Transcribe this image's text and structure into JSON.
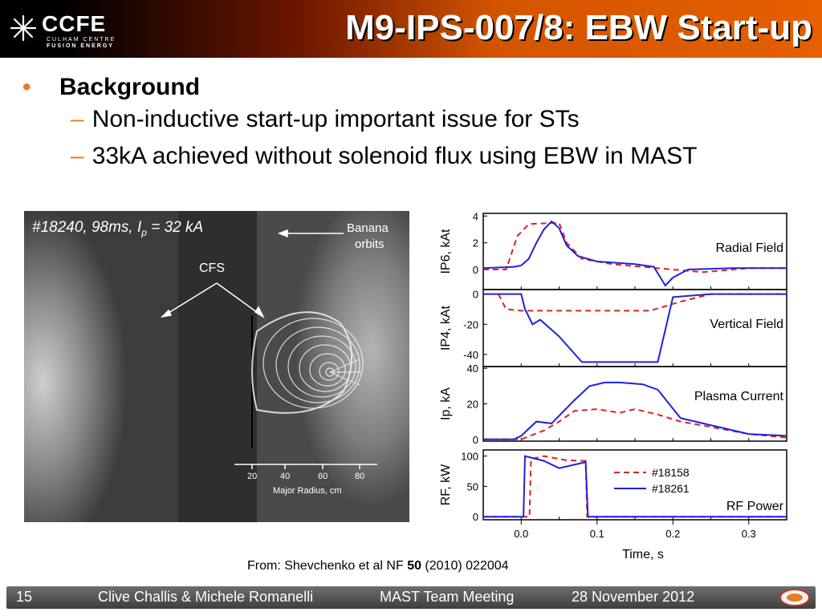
{
  "header": {
    "logo_name": "CCFE",
    "logo_line1": "CULHAM CENTRE",
    "logo_line2": "FUSION ENERGY",
    "title": "M9-IPS-007/8: EBW Start-up"
  },
  "bullets": {
    "heading": "Background",
    "items": [
      "Non-inductive start-up important issue for STs",
      "33kA achieved without solenoid flux using EBW in MAST"
    ]
  },
  "photo": {
    "label": "#18240, 98ms, I",
    "label_sub": "p",
    "label_rest": " = 32 kA",
    "banana": [
      "Banana",
      "orbits"
    ],
    "cfs": "CFS",
    "axis_ticks": [
      "20",
      "40",
      "60",
      "80"
    ],
    "axis_label": "Major Radius, cm"
  },
  "chart_data": [
    {
      "type": "line",
      "panel": "Radial Field",
      "ylabel": "I_P6, kAt",
      "yticks": [
        0,
        2,
        4
      ],
      "ylim": [
        -1.5,
        4.2
      ],
      "xlim": [
        -0.05,
        0.35
      ],
      "series": [
        {
          "name": "#18158",
          "color": "#e02020",
          "dash": true,
          "points": [
            [
              -0.05,
              0
            ],
            [
              -0.02,
              0
            ],
            [
              -0.005,
              2.5
            ],
            [
              0.01,
              3.4
            ],
            [
              0.05,
              3.5
            ],
            [
              0.06,
              2.0
            ],
            [
              0.08,
              0.8
            ],
            [
              0.12,
              0.4
            ],
            [
              0.16,
              0.2
            ],
            [
              0.19,
              0.05
            ],
            [
              0.24,
              -0.2
            ],
            [
              0.3,
              0.1
            ],
            [
              0.35,
              0.1
            ]
          ]
        },
        {
          "name": "#18261",
          "color": "#2020e0",
          "points": [
            [
              -0.05,
              0.1
            ],
            [
              -0.01,
              0.2
            ],
            [
              0.0,
              0.3
            ],
            [
              0.01,
              0.8
            ],
            [
              0.02,
              2.0
            ],
            [
              0.03,
              3.0
            ],
            [
              0.04,
              3.6
            ],
            [
              0.05,
              3.1
            ],
            [
              0.06,
              1.8
            ],
            [
              0.075,
              1.0
            ],
            [
              0.1,
              0.6
            ],
            [
              0.15,
              0.4
            ],
            [
              0.175,
              0.2
            ],
            [
              0.19,
              -1.2
            ],
            [
              0.2,
              -0.6
            ],
            [
              0.22,
              0.0
            ],
            [
              0.28,
              0.1
            ],
            [
              0.35,
              0.1
            ]
          ]
        }
      ]
    },
    {
      "type": "line",
      "panel": "Vertical Field",
      "ylabel": "I_P4, kAt",
      "yticks": [
        0,
        -20,
        -40
      ],
      "ylim": [
        -48,
        3
      ],
      "xlim": [
        -0.05,
        0.35
      ],
      "series": [
        {
          "name": "#18158",
          "color": "#e02020",
          "dash": true,
          "points": [
            [
              -0.03,
              0
            ],
            [
              -0.02,
              -10
            ],
            [
              0.0,
              -11
            ],
            [
              0.05,
              -11
            ],
            [
              0.1,
              -11
            ],
            [
              0.17,
              -11
            ],
            [
              0.21,
              -5
            ],
            [
              0.25,
              0
            ],
            [
              0.35,
              0
            ]
          ]
        },
        {
          "name": "#18261",
          "color": "#2020e0",
          "points": [
            [
              -0.05,
              0
            ],
            [
              0.0,
              0
            ],
            [
              0.005,
              -10
            ],
            [
              0.015,
              -20
            ],
            [
              0.025,
              -17
            ],
            [
              0.05,
              -28
            ],
            [
              0.08,
              -45
            ],
            [
              0.1,
              -45
            ],
            [
              0.15,
              -45
            ],
            [
              0.18,
              -45
            ],
            [
              0.2,
              -2
            ],
            [
              0.25,
              0
            ],
            [
              0.35,
              0
            ]
          ]
        }
      ]
    },
    {
      "type": "line",
      "panel": "Plasma Current",
      "ylabel": "I_p, kA",
      "yticks": [
        0,
        20,
        40
      ],
      "ylim": [
        -1,
        41
      ],
      "xlim": [
        -0.05,
        0.35
      ],
      "series": [
        {
          "name": "#18158",
          "color": "#e02020",
          "dash": true,
          "points": [
            [
              -0.05,
              0
            ],
            [
              0.0,
              0
            ],
            [
              0.03,
              5
            ],
            [
              0.05,
              10
            ],
            [
              0.07,
              16
            ],
            [
              0.1,
              17
            ],
            [
              0.13,
              15
            ],
            [
              0.15,
              17
            ],
            [
              0.18,
              14
            ],
            [
              0.21,
              10
            ],
            [
              0.25,
              7
            ],
            [
              0.3,
              3
            ],
            [
              0.35,
              1
            ]
          ]
        },
        {
          "name": "#18261",
          "color": "#2020e0",
          "points": [
            [
              -0.05,
              0
            ],
            [
              -0.01,
              0
            ],
            [
              0.0,
              2
            ],
            [
              0.02,
              10
            ],
            [
              0.04,
              9
            ],
            [
              0.07,
              22
            ],
            [
              0.09,
              30
            ],
            [
              0.11,
              32
            ],
            [
              0.13,
              32
            ],
            [
              0.16,
              31
            ],
            [
              0.18,
              28
            ],
            [
              0.21,
              12
            ],
            [
              0.25,
              8
            ],
            [
              0.3,
              3
            ],
            [
              0.35,
              2
            ]
          ]
        }
      ]
    },
    {
      "type": "line",
      "panel": "RF Power",
      "ylabel": "RF, kW",
      "xlabel": "Time, s",
      "yticks": [
        0,
        50,
        100
      ],
      "xticks": [
        0.0,
        0.1,
        0.2,
        0.3
      ],
      "ylim": [
        -5,
        110
      ],
      "xlim": [
        -0.05,
        0.35
      ],
      "legend": "right",
      "series": [
        {
          "name": "#18158",
          "color": "#e02020",
          "dash": true,
          "points": [
            [
              -0.05,
              0
            ],
            [
              0.011,
              0
            ],
            [
              0.013,
              95
            ],
            [
              0.03,
              100
            ],
            [
              0.06,
              93
            ],
            [
              0.085,
              92
            ],
            [
              0.087,
              0
            ],
            [
              0.35,
              0
            ]
          ]
        },
        {
          "name": "#18261",
          "color": "#2020e0",
          "points": [
            [
              -0.05,
              0
            ],
            [
              0.003,
              0
            ],
            [
              0.005,
              100
            ],
            [
              0.03,
              92
            ],
            [
              0.05,
              80
            ],
            [
              0.085,
              90
            ],
            [
              0.088,
              0
            ],
            [
              0.35,
              0
            ]
          ]
        }
      ]
    }
  ],
  "plot_labels": {
    "legend_dash": "#18158",
    "legend_solid": "#18261",
    "xlabel": "Time, s"
  },
  "caption": {
    "before": "From: Shevchenko et al NF ",
    "bold": "50",
    "after": " (2010) 022004"
  },
  "footer": {
    "page": "15",
    "authors": "Clive Challis & Michele Romanelli",
    "meeting": "MAST Team Meeting",
    "date": "28 November 2012"
  }
}
